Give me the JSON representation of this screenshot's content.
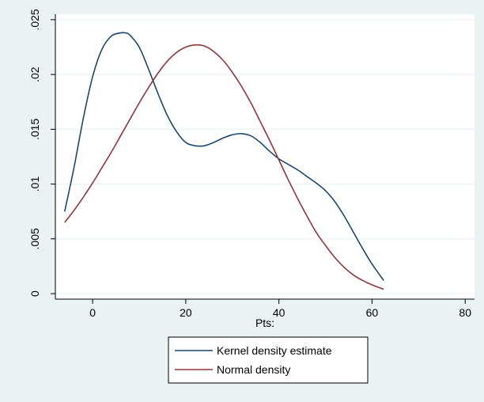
{
  "chart_data": {
    "type": "line",
    "title": "",
    "xlabel": "Pts:",
    "ylabel": "",
    "xlim": [
      -8,
      82
    ],
    "ylim": [
      -0.0005,
      0.0255
    ],
    "x_ticks": [
      0,
      20,
      40,
      60,
      80
    ],
    "x_tick_labels": [
      "0",
      "20",
      "40",
      "60",
      "80"
    ],
    "y_ticks": [
      0,
      0.005,
      0.01,
      0.015,
      0.02,
      0.025
    ],
    "y_tick_labels": [
      "0",
      ".005",
      ".01",
      ".015",
      ".02",
      ".025"
    ],
    "grid": true,
    "legend_position": "bottom",
    "series": [
      {
        "name": "Kernel density estimate",
        "color": "#1a476f",
        "x": [
          -6,
          -4,
          -2,
          0,
          2,
          4,
          6,
          7,
          8,
          10,
          12,
          14,
          16,
          18,
          20,
          22,
          24,
          26,
          28,
          30,
          32,
          34,
          36,
          38,
          40,
          42,
          44,
          46,
          48,
          50,
          52,
          54,
          56,
          58,
          60,
          62.5
        ],
        "y": [
          0.0075,
          0.0115,
          0.016,
          0.0198,
          0.0223,
          0.0235,
          0.0238,
          0.0238,
          0.0236,
          0.0225,
          0.0205,
          0.0183,
          0.0163,
          0.0148,
          0.0138,
          0.0135,
          0.0135,
          0.0138,
          0.0142,
          0.0145,
          0.0146,
          0.0144,
          0.0138,
          0.013,
          0.0123,
          0.0118,
          0.0113,
          0.0107,
          0.0101,
          0.0094,
          0.0084,
          0.0071,
          0.0056,
          0.0041,
          0.0027,
          0.0012
        ]
      },
      {
        "name": "Normal density",
        "color": "#90353b",
        "x": [
          -6,
          -4,
          -2,
          0,
          2,
          4,
          6,
          8,
          10,
          12,
          14,
          16,
          18,
          20,
          22,
          24,
          26,
          28,
          30,
          32,
          34,
          36,
          38,
          40,
          42,
          44,
          46,
          48,
          50,
          52,
          54,
          56,
          58,
          60,
          62.5
        ],
        "y": [
          0.0065,
          0.0076,
          0.0088,
          0.0101,
          0.0115,
          0.0129,
          0.0144,
          0.0159,
          0.0174,
          0.0188,
          0.0201,
          0.0212,
          0.022,
          0.0225,
          0.0227,
          0.0226,
          0.0221,
          0.0213,
          0.0202,
          0.0189,
          0.0174,
          0.0157,
          0.014,
          0.0122,
          0.0104,
          0.0087,
          0.0071,
          0.0056,
          0.0044,
          0.0033,
          0.0024,
          0.0017,
          0.0012,
          0.0008,
          0.0004
        ]
      }
    ]
  }
}
